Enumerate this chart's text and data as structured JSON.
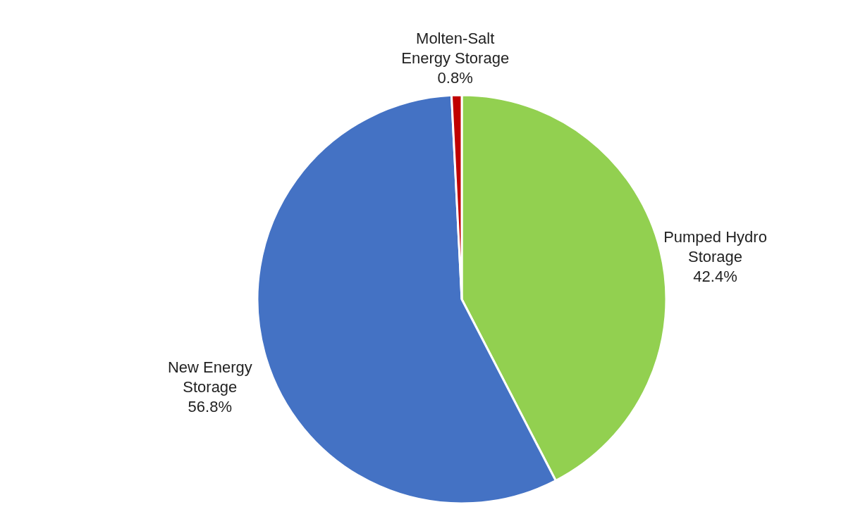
{
  "chart_data": {
    "type": "pie",
    "categories": [
      "Pumped Hydro Storage",
      "New Energy Storage",
      "Molten-Salt Energy Storage"
    ],
    "values": [
      42.4,
      56.8,
      0.8
    ],
    "colors": [
      "#92d050",
      "#4472c4",
      "#c00000"
    ],
    "value_labels": [
      "42.4%",
      "56.8%",
      "0.8%"
    ]
  }
}
